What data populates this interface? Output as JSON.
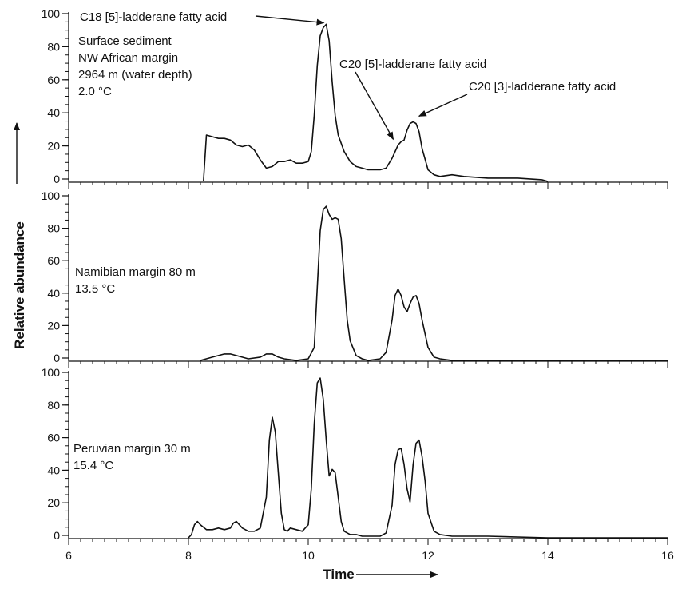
{
  "chart_data": [
    {
      "type": "line",
      "panel": "top",
      "label_lines": [
        "Surface sediment",
        "NW African margin",
        "2964 m (water depth)",
        "2.0 °C"
      ],
      "xlim": [
        6,
        16
      ],
      "ylim": [
        0,
        100
      ],
      "yticks": [
        0,
        20,
        40,
        60,
        80,
        100
      ],
      "x": [
        8.25,
        8.3,
        8.4,
        8.5,
        8.6,
        8.7,
        8.8,
        8.9,
        9.0,
        9.1,
        9.2,
        9.3,
        9.4,
        9.5,
        9.6,
        9.7,
        9.8,
        9.9,
        10.0,
        10.05,
        10.1,
        10.15,
        10.2,
        10.25,
        10.3,
        10.35,
        10.4,
        10.45,
        10.5,
        10.6,
        10.7,
        10.8,
        10.9,
        11.0,
        11.2,
        11.3,
        11.4,
        11.5,
        11.55,
        11.6,
        11.65,
        11.7,
        11.75,
        11.8,
        11.85,
        11.9,
        12.0,
        12.1,
        12.2,
        12.4,
        12.6,
        13.0,
        13.5,
        13.9,
        14.0
      ],
      "series": [
        {
          "values": [
            0,
            28,
            27,
            26,
            26,
            25,
            22,
            21,
            22,
            19,
            13,
            8,
            9,
            12,
            12,
            13,
            11,
            11,
            12,
            18,
            40,
            70,
            88,
            93,
            95,
            85,
            60,
            40,
            28,
            18,
            12,
            9,
            8,
            7,
            7,
            8,
            14,
            22,
            24,
            25,
            31,
            35,
            36,
            35,
            30,
            20,
            7,
            4,
            3,
            4,
            3,
            2,
            2,
            1,
            0
          ]
        }
      ],
      "annotations": [
        {
          "text": "C18 [5]-ladderane fatty acid",
          "target_x": 10.3,
          "target_y": 93
        },
        {
          "text": "C20 [5]-ladderane fatty acid",
          "target_x": 11.5,
          "target_y": 23
        },
        {
          "text": "C20 [3]-ladderane fatty acid",
          "target_x": 11.8,
          "target_y": 36
        }
      ]
    },
    {
      "type": "line",
      "panel": "middle",
      "label_lines": [
        "Namibian margin 80 m",
        "13.5 °C"
      ],
      "xlim": [
        6,
        16
      ],
      "ylim": [
        0,
        100
      ],
      "yticks": [
        0,
        20,
        40,
        60,
        80,
        100
      ],
      "x": [
        8.2,
        8.4,
        8.5,
        8.6,
        8.7,
        8.8,
        9.0,
        9.2,
        9.3,
        9.4,
        9.5,
        9.6,
        9.8,
        10.0,
        10.1,
        10.15,
        10.2,
        10.25,
        10.3,
        10.35,
        10.4,
        10.45,
        10.5,
        10.55,
        10.6,
        10.65,
        10.7,
        10.8,
        10.9,
        11.0,
        11.2,
        11.3,
        11.4,
        11.45,
        11.5,
        11.55,
        11.6,
        11.65,
        11.7,
        11.75,
        11.8,
        11.85,
        11.9,
        12.0,
        12.1,
        12.2,
        12.4,
        13.0,
        14.0,
        15.0,
        16.0
      ],
      "series": [
        {
          "values": [
            0,
            2,
            3,
            4,
            4,
            3,
            1,
            2,
            4,
            4,
            2,
            1,
            0,
            1,
            8,
            45,
            80,
            93,
            95,
            90,
            87,
            88,
            87,
            75,
            50,
            25,
            12,
            3,
            1,
            0,
            1,
            5,
            25,
            40,
            44,
            40,
            33,
            30,
            35,
            39,
            40,
            35,
            25,
            8,
            2,
            1,
            0,
            0,
            0,
            0,
            0
          ]
        }
      ]
    },
    {
      "type": "line",
      "panel": "bottom",
      "label_lines": [
        "Peruvian margin 30 m",
        "15.4 °C"
      ],
      "xlim": [
        6,
        16
      ],
      "xticks": [
        6,
        8,
        10,
        12,
        14,
        16
      ],
      "xlabel": "Time",
      "ylim": [
        0,
        100
      ],
      "yticks": [
        0,
        20,
        40,
        60,
        80,
        100
      ],
      "x": [
        8.0,
        8.05,
        8.1,
        8.15,
        8.2,
        8.3,
        8.4,
        8.5,
        8.6,
        8.7,
        8.75,
        8.8,
        8.9,
        9.0,
        9.1,
        9.2,
        9.3,
        9.35,
        9.4,
        9.45,
        9.5,
        9.55,
        9.6,
        9.65,
        9.7,
        9.8,
        9.9,
        10.0,
        10.05,
        10.1,
        10.15,
        10.2,
        10.25,
        10.3,
        10.35,
        10.4,
        10.45,
        10.5,
        10.55,
        10.6,
        10.7,
        10.8,
        10.9,
        11.0,
        11.2,
        11.3,
        11.4,
        11.45,
        11.5,
        11.55,
        11.6,
        11.65,
        11.7,
        11.75,
        11.8,
        11.85,
        11.9,
        11.95,
        12.0,
        12.1,
        12.2,
        12.4,
        12.8,
        13.0,
        14.0,
        15.0,
        16.0
      ],
      "series": [
        {
          "values": [
            0,
            2,
            8,
            10,
            8,
            5,
            5,
            6,
            5,
            6,
            9,
            10,
            6,
            4,
            4,
            6,
            25,
            60,
            74,
            65,
            40,
            15,
            5,
            4,
            6,
            5,
            4,
            8,
            30,
            70,
            95,
            98,
            85,
            60,
            38,
            42,
            40,
            25,
            10,
            4,
            2,
            2,
            1,
            1,
            1,
            3,
            20,
            45,
            54,
            55,
            45,
            30,
            22,
            45,
            58,
            60,
            50,
            35,
            15,
            4,
            2,
            1,
            1,
            1,
            0,
            0,
            0
          ]
        }
      ]
    }
  ],
  "ylabel": "Relative abundance",
  "line_color": "#111111"
}
